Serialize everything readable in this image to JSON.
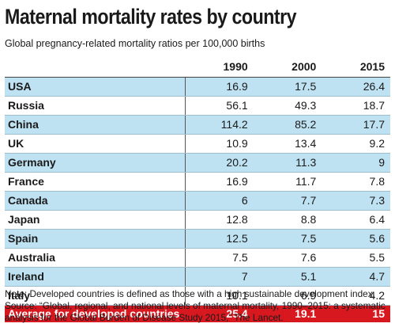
{
  "title": "Maternal mortality rates by country",
  "subtitle": "Global pregnancy-related mortality ratios per 100,000 births",
  "colors": {
    "accent_row": "#bfe2f3",
    "average_row": "#d7181f"
  },
  "chart_data": {
    "type": "table",
    "columns": [
      "1990",
      "2000",
      "2015"
    ],
    "rows": [
      {
        "country": "USA",
        "values": [
          "16.9",
          "17.5",
          "26.4"
        ]
      },
      {
        "country": "Russia",
        "values": [
          "56.1",
          "49.3",
          "18.7"
        ]
      },
      {
        "country": "China",
        "values": [
          "114.2",
          "85.2",
          "17.7"
        ]
      },
      {
        "country": "UK",
        "values": [
          "10.9",
          "13.4",
          "9.2"
        ]
      },
      {
        "country": "Germany",
        "values": [
          "20.2",
          "11.3",
          "9"
        ]
      },
      {
        "country": "France",
        "values": [
          "16.9",
          "11.7",
          "7.8"
        ]
      },
      {
        "country": "Canada",
        "values": [
          "6",
          "7.7",
          "7.3"
        ]
      },
      {
        "country": "Japan",
        "values": [
          "12.8",
          "8.8",
          "6.4"
        ]
      },
      {
        "country": "Spain",
        "values": [
          "12.5",
          "7.5",
          "5.6"
        ]
      },
      {
        "country": "Australia",
        "values": [
          "7.5",
          "7.6",
          "5.5"
        ]
      },
      {
        "country": "Ireland",
        "values": [
          "7",
          "5.1",
          "4.7"
        ]
      },
      {
        "country": "Italy",
        "values": [
          "10.1",
          "6.9",
          "4.2"
        ]
      }
    ],
    "average": {
      "label": "Average for developed countries",
      "values": [
        "25.4",
        "19.1",
        "15"
      ]
    }
  },
  "note": "Note: Developed countries is defined as those with a high sustainable development index. Source: “Global, regional, and national levels of maternal mortality, 1990–2015: a systematic analysis for the Global Burden of Disease Study 2015,” The Lancet."
}
